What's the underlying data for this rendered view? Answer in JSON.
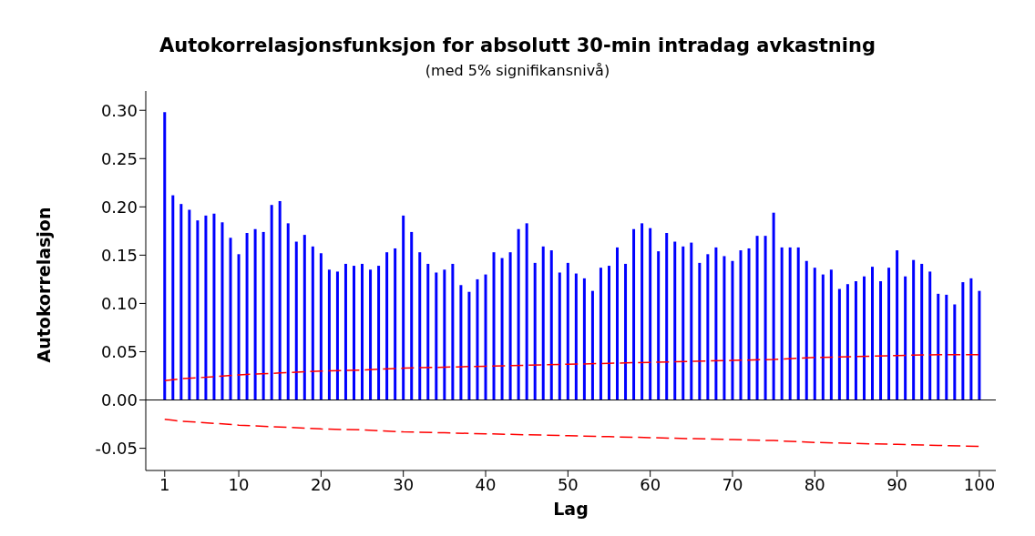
{
  "chart_data": {
    "type": "bar",
    "title": "Autokorrelasjonsfunksjon for absolutt 30-min intradag avkastning",
    "subtitle": "(med 5% signifikansnivå)",
    "xlabel": "Lag",
    "ylabel": "Autokorrelasjon",
    "x": [
      1,
      2,
      3,
      4,
      5,
      6,
      7,
      8,
      9,
      10,
      11,
      12,
      13,
      14,
      15,
      16,
      17,
      18,
      19,
      20,
      21,
      22,
      23,
      24,
      25,
      26,
      27,
      28,
      29,
      30,
      31,
      32,
      33,
      34,
      35,
      36,
      37,
      38,
      39,
      40,
      41,
      42,
      43,
      44,
      45,
      46,
      47,
      48,
      49,
      50,
      51,
      52,
      53,
      54,
      55,
      56,
      57,
      58,
      59,
      60,
      61,
      62,
      63,
      64,
      65,
      66,
      67,
      68,
      69,
      70,
      71,
      72,
      73,
      74,
      75,
      76,
      77,
      78,
      79,
      80,
      81,
      82,
      83,
      84,
      85,
      86,
      87,
      88,
      89,
      90,
      91,
      92,
      93,
      94,
      95,
      96,
      97,
      98,
      99,
      100
    ],
    "series": [
      {
        "color": "#0000ff",
        "values": [
          0.298,
          0.212,
          0.203,
          0.197,
          0.186,
          0.191,
          0.193,
          0.184,
          0.168,
          0.151,
          0.173,
          0.177,
          0.174,
          0.202,
          0.206,
          0.183,
          0.164,
          0.171,
          0.159,
          0.152,
          0.135,
          0.133,
          0.141,
          0.139,
          0.141,
          0.135,
          0.139,
          0.153,
          0.157,
          0.191,
          0.174,
          0.153,
          0.141,
          0.132,
          0.135,
          0.141,
          0.119,
          0.112,
          0.125,
          0.13,
          0.153,
          0.147,
          0.153,
          0.177,
          0.183,
          0.142,
          0.159,
          0.155,
          0.132,
          0.142,
          0.131,
          0.126,
          0.113,
          0.137,
          0.139,
          0.158,
          0.141,
          0.177,
          0.183,
          0.178,
          0.154,
          0.173,
          0.164,
          0.159,
          0.163,
          0.142,
          0.151,
          0.158,
          0.149,
          0.144,
          0.155,
          0.157,
          0.17,
          0.17,
          0.194,
          0.158,
          0.158,
          0.158,
          0.144,
          0.137,
          0.13,
          0.135,
          0.115,
          0.12,
          0.123,
          0.128,
          0.138,
          0.123,
          0.137,
          0.155,
          0.128,
          0.145,
          0.141,
          0.133,
          0.11,
          0.109,
          0.099,
          0.122,
          0.126,
          0.113
        ]
      },
      {
        "type": "line",
        "color": "#ff0000",
        "line_style": "dashed",
        "x": [
          1,
          2,
          3,
          5,
          10,
          15,
          20,
          25,
          30,
          35,
          40,
          45,
          50,
          55,
          60,
          65,
          70,
          75,
          80,
          85,
          90,
          95,
          100
        ],
        "values": [
          0.02,
          0.021,
          0.022,
          0.023,
          0.026,
          0.028,
          0.03,
          0.031,
          0.033,
          0.034,
          0.035,
          0.036,
          0.037,
          0.038,
          0.039,
          0.04,
          0.041,
          0.042,
          0.044,
          0.045,
          0.046,
          0.047,
          0.047
        ]
      },
      {
        "type": "line",
        "color": "#ff0000",
        "line_style": "dashed",
        "x": [
          1,
          2,
          3,
          5,
          10,
          15,
          20,
          25,
          30,
          35,
          40,
          45,
          50,
          55,
          60,
          65,
          70,
          75,
          80,
          85,
          90,
          95,
          100
        ],
        "values": [
          -0.02,
          -0.021,
          -0.022,
          -0.023,
          -0.026,
          -0.028,
          -0.03,
          -0.031,
          -0.033,
          -0.034,
          -0.035,
          -0.036,
          -0.037,
          -0.038,
          -0.039,
          -0.04,
          -0.041,
          -0.042,
          -0.044,
          -0.045,
          -0.046,
          -0.047,
          -0.048
        ]
      }
    ],
    "xlim": [
      -1.3,
      102
    ],
    "xticks": [
      1,
      10,
      20,
      30,
      40,
      50,
      60,
      70,
      80,
      90,
      100
    ],
    "ylim": [
      -0.073,
      0.32
    ],
    "yticks": [
      {
        "value": -0.05,
        "label": "-0.05"
      },
      {
        "value": 0,
        "label": "0.00"
      },
      {
        "value": 0.05,
        "label": "0.05"
      },
      {
        "value": 0.1,
        "label": "0.10"
      },
      {
        "value": 0.15,
        "label": "0.15"
      },
      {
        "value": 0.2,
        "label": "0.20"
      },
      {
        "value": 0.25,
        "label": "0.25"
      },
      {
        "value": 0.3,
        "label": "0.30"
      }
    ],
    "ref_lines": [
      {
        "axis": "y",
        "value": 0,
        "color": "#000000"
      }
    ],
    "grid": false,
    "legend": false
  }
}
